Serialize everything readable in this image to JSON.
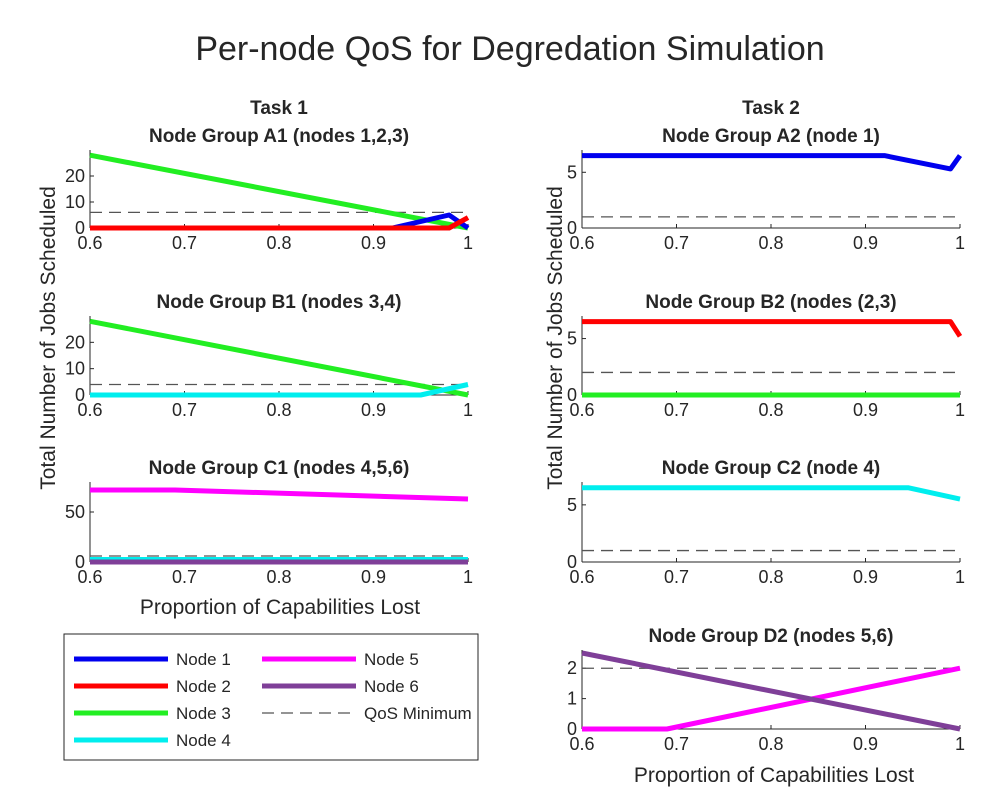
{
  "figure": {
    "title": "Per-node QoS for Degredation Simulation",
    "ylabel": "Total Number of Jobs Scheduled",
    "xlabel": "Proportion of Capabilities Lost"
  },
  "legend": [
    {
      "name": "Node 1",
      "color": "#0000ee",
      "style": "solid"
    },
    {
      "name": "Node 2",
      "color": "#ff0000",
      "style": "solid"
    },
    {
      "name": "Node 3",
      "color": "#22ee22",
      "style": "solid"
    },
    {
      "name": "Node 4",
      "color": "#00eeee",
      "style": "solid"
    },
    {
      "name": "Node 5",
      "color": "#ff00ff",
      "style": "solid"
    },
    {
      "name": "Node 6",
      "color": "#7f3f98",
      "style": "solid"
    },
    {
      "name": "QoS Minimum",
      "color": "#555555",
      "style": "dashed"
    }
  ],
  "chart_data": [
    {
      "type": "line",
      "heading": "Task 1",
      "title": "Node Group A1 (nodes 1,2,3)",
      "xlim": [
        0.6,
        1
      ],
      "ylim": [
        0,
        30
      ],
      "xticks": [
        "0.6",
        "0.7",
        "0.8",
        "0.9",
        "1"
      ],
      "yticks": [
        {
          "v": 0,
          "t": "0"
        },
        {
          "v": 10,
          "t": "10"
        },
        {
          "v": 20,
          "t": "20"
        }
      ],
      "qos": 6,
      "series": [
        {
          "name": "Node 3",
          "color": "#22ee22",
          "x": [
            0.6,
            1.0
          ],
          "y": [
            28,
            0
          ]
        },
        {
          "name": "Node 1",
          "color": "#0000ee",
          "x": [
            0.6,
            0.92,
            0.98,
            1.0
          ],
          "y": [
            0,
            0,
            5,
            0
          ]
        },
        {
          "name": "Node 2",
          "color": "#ff0000",
          "x": [
            0.6,
            0.98,
            1.0
          ],
          "y": [
            0,
            0,
            4
          ]
        }
      ]
    },
    {
      "type": "line",
      "heading": "",
      "title": "Node Group B1 (nodes 3,4)",
      "xlim": [
        0.6,
        1
      ],
      "ylim": [
        0,
        30
      ],
      "xticks": [
        "0.6",
        "0.7",
        "0.8",
        "0.9",
        "1"
      ],
      "yticks": [
        {
          "v": 0,
          "t": "0"
        },
        {
          "v": 10,
          "t": "10"
        },
        {
          "v": 20,
          "t": "20"
        }
      ],
      "qos": 4,
      "series": [
        {
          "name": "Node 3",
          "color": "#22ee22",
          "x": [
            0.6,
            1.0
          ],
          "y": [
            28,
            0
          ]
        },
        {
          "name": "Node 4",
          "color": "#00eeee",
          "x": [
            0.6,
            0.95,
            1.0
          ],
          "y": [
            0,
            0,
            4
          ]
        }
      ]
    },
    {
      "type": "line",
      "heading": "",
      "title": "Node Group C1 (nodes 4,5,6)",
      "xlim": [
        0.6,
        1
      ],
      "ylim": [
        0,
        80
      ],
      "xticks": [
        "0.6",
        "0.7",
        "0.8",
        "0.9",
        "1"
      ],
      "yticks": [
        {
          "v": 0,
          "t": "0"
        },
        {
          "v": 50,
          "t": "50"
        }
      ],
      "qos": 6,
      "series": [
        {
          "name": "Node 5",
          "color": "#ff00ff",
          "x": [
            0.6,
            0.69,
            1.0
          ],
          "y": [
            72,
            72,
            63
          ]
        },
        {
          "name": "Node 4",
          "color": "#00eeee",
          "x": [
            0.6,
            1.0
          ],
          "y": [
            2.5,
            2.5
          ]
        },
        {
          "name": "Node 6",
          "color": "#7f3f98",
          "x": [
            0.6,
            1.0
          ],
          "y": [
            0,
            0
          ]
        }
      ]
    },
    {
      "type": "line",
      "heading": "Task 2",
      "title": "Node Group A2 (node 1)",
      "xlim": [
        0.6,
        1
      ],
      "ylim": [
        0,
        7
      ],
      "xticks": [
        "0.6",
        "0.7",
        "0.8",
        "0.9",
        "1"
      ],
      "yticks": [
        {
          "v": 0,
          "t": "0"
        },
        {
          "v": 5,
          "t": "5"
        }
      ],
      "qos": 1,
      "series": [
        {
          "name": "Node 1",
          "color": "#0000ee",
          "x": [
            0.6,
            0.92,
            0.99,
            1.0
          ],
          "y": [
            6.5,
            6.5,
            5.3,
            6.5
          ]
        }
      ]
    },
    {
      "type": "line",
      "heading": "",
      "title": "Node Group B2 (nodes (2,3)",
      "xlim": [
        0.6,
        1
      ],
      "ylim": [
        0,
        7
      ],
      "xticks": [
        "0.6",
        "0.7",
        "0.8",
        "0.9",
        "1"
      ],
      "yticks": [
        {
          "v": 0,
          "t": "0"
        },
        {
          "v": 5,
          "t": "5"
        }
      ],
      "qos": 2,
      "series": [
        {
          "name": "Node 2",
          "color": "#ff0000",
          "x": [
            0.6,
            0.99,
            1.0
          ],
          "y": [
            6.5,
            6.5,
            5.2
          ]
        },
        {
          "name": "Node 3",
          "color": "#22ee22",
          "x": [
            0.6,
            1.0
          ],
          "y": [
            0,
            0
          ]
        }
      ]
    },
    {
      "type": "line",
      "heading": "",
      "title": "Node Group C2 (node 4)",
      "xlim": [
        0.6,
        1
      ],
      "ylim": [
        0,
        7
      ],
      "xticks": [
        "0.6",
        "0.7",
        "0.8",
        "0.9",
        "1"
      ],
      "yticks": [
        {
          "v": 0,
          "t": "0"
        },
        {
          "v": 5,
          "t": "5"
        }
      ],
      "qos": 1,
      "series": [
        {
          "name": "Node 4",
          "color": "#00eeee",
          "x": [
            0.6,
            0.945,
            1.0
          ],
          "y": [
            6.5,
            6.5,
            5.5
          ]
        }
      ]
    },
    {
      "type": "line",
      "heading": "",
      "title": "Node Group D2 (nodes 5,6)",
      "xlim": [
        0.6,
        1
      ],
      "ylim": [
        0,
        2.6
      ],
      "xticks": [
        "0.6",
        "0.7",
        "0.8",
        "0.9",
        "1"
      ],
      "yticks": [
        {
          "v": 0,
          "t": "0"
        },
        {
          "v": 1,
          "t": "1"
        },
        {
          "v": 2,
          "t": "2"
        }
      ],
      "qos": 2,
      "series": [
        {
          "name": "Node 5",
          "color": "#ff00ff",
          "x": [
            0.6,
            0.69,
            1.0
          ],
          "y": [
            0,
            0,
            2
          ]
        },
        {
          "name": "Node 6",
          "color": "#7f3f98",
          "x": [
            0.6,
            1.0
          ],
          "y": [
            2.5,
            0
          ]
        }
      ]
    }
  ]
}
